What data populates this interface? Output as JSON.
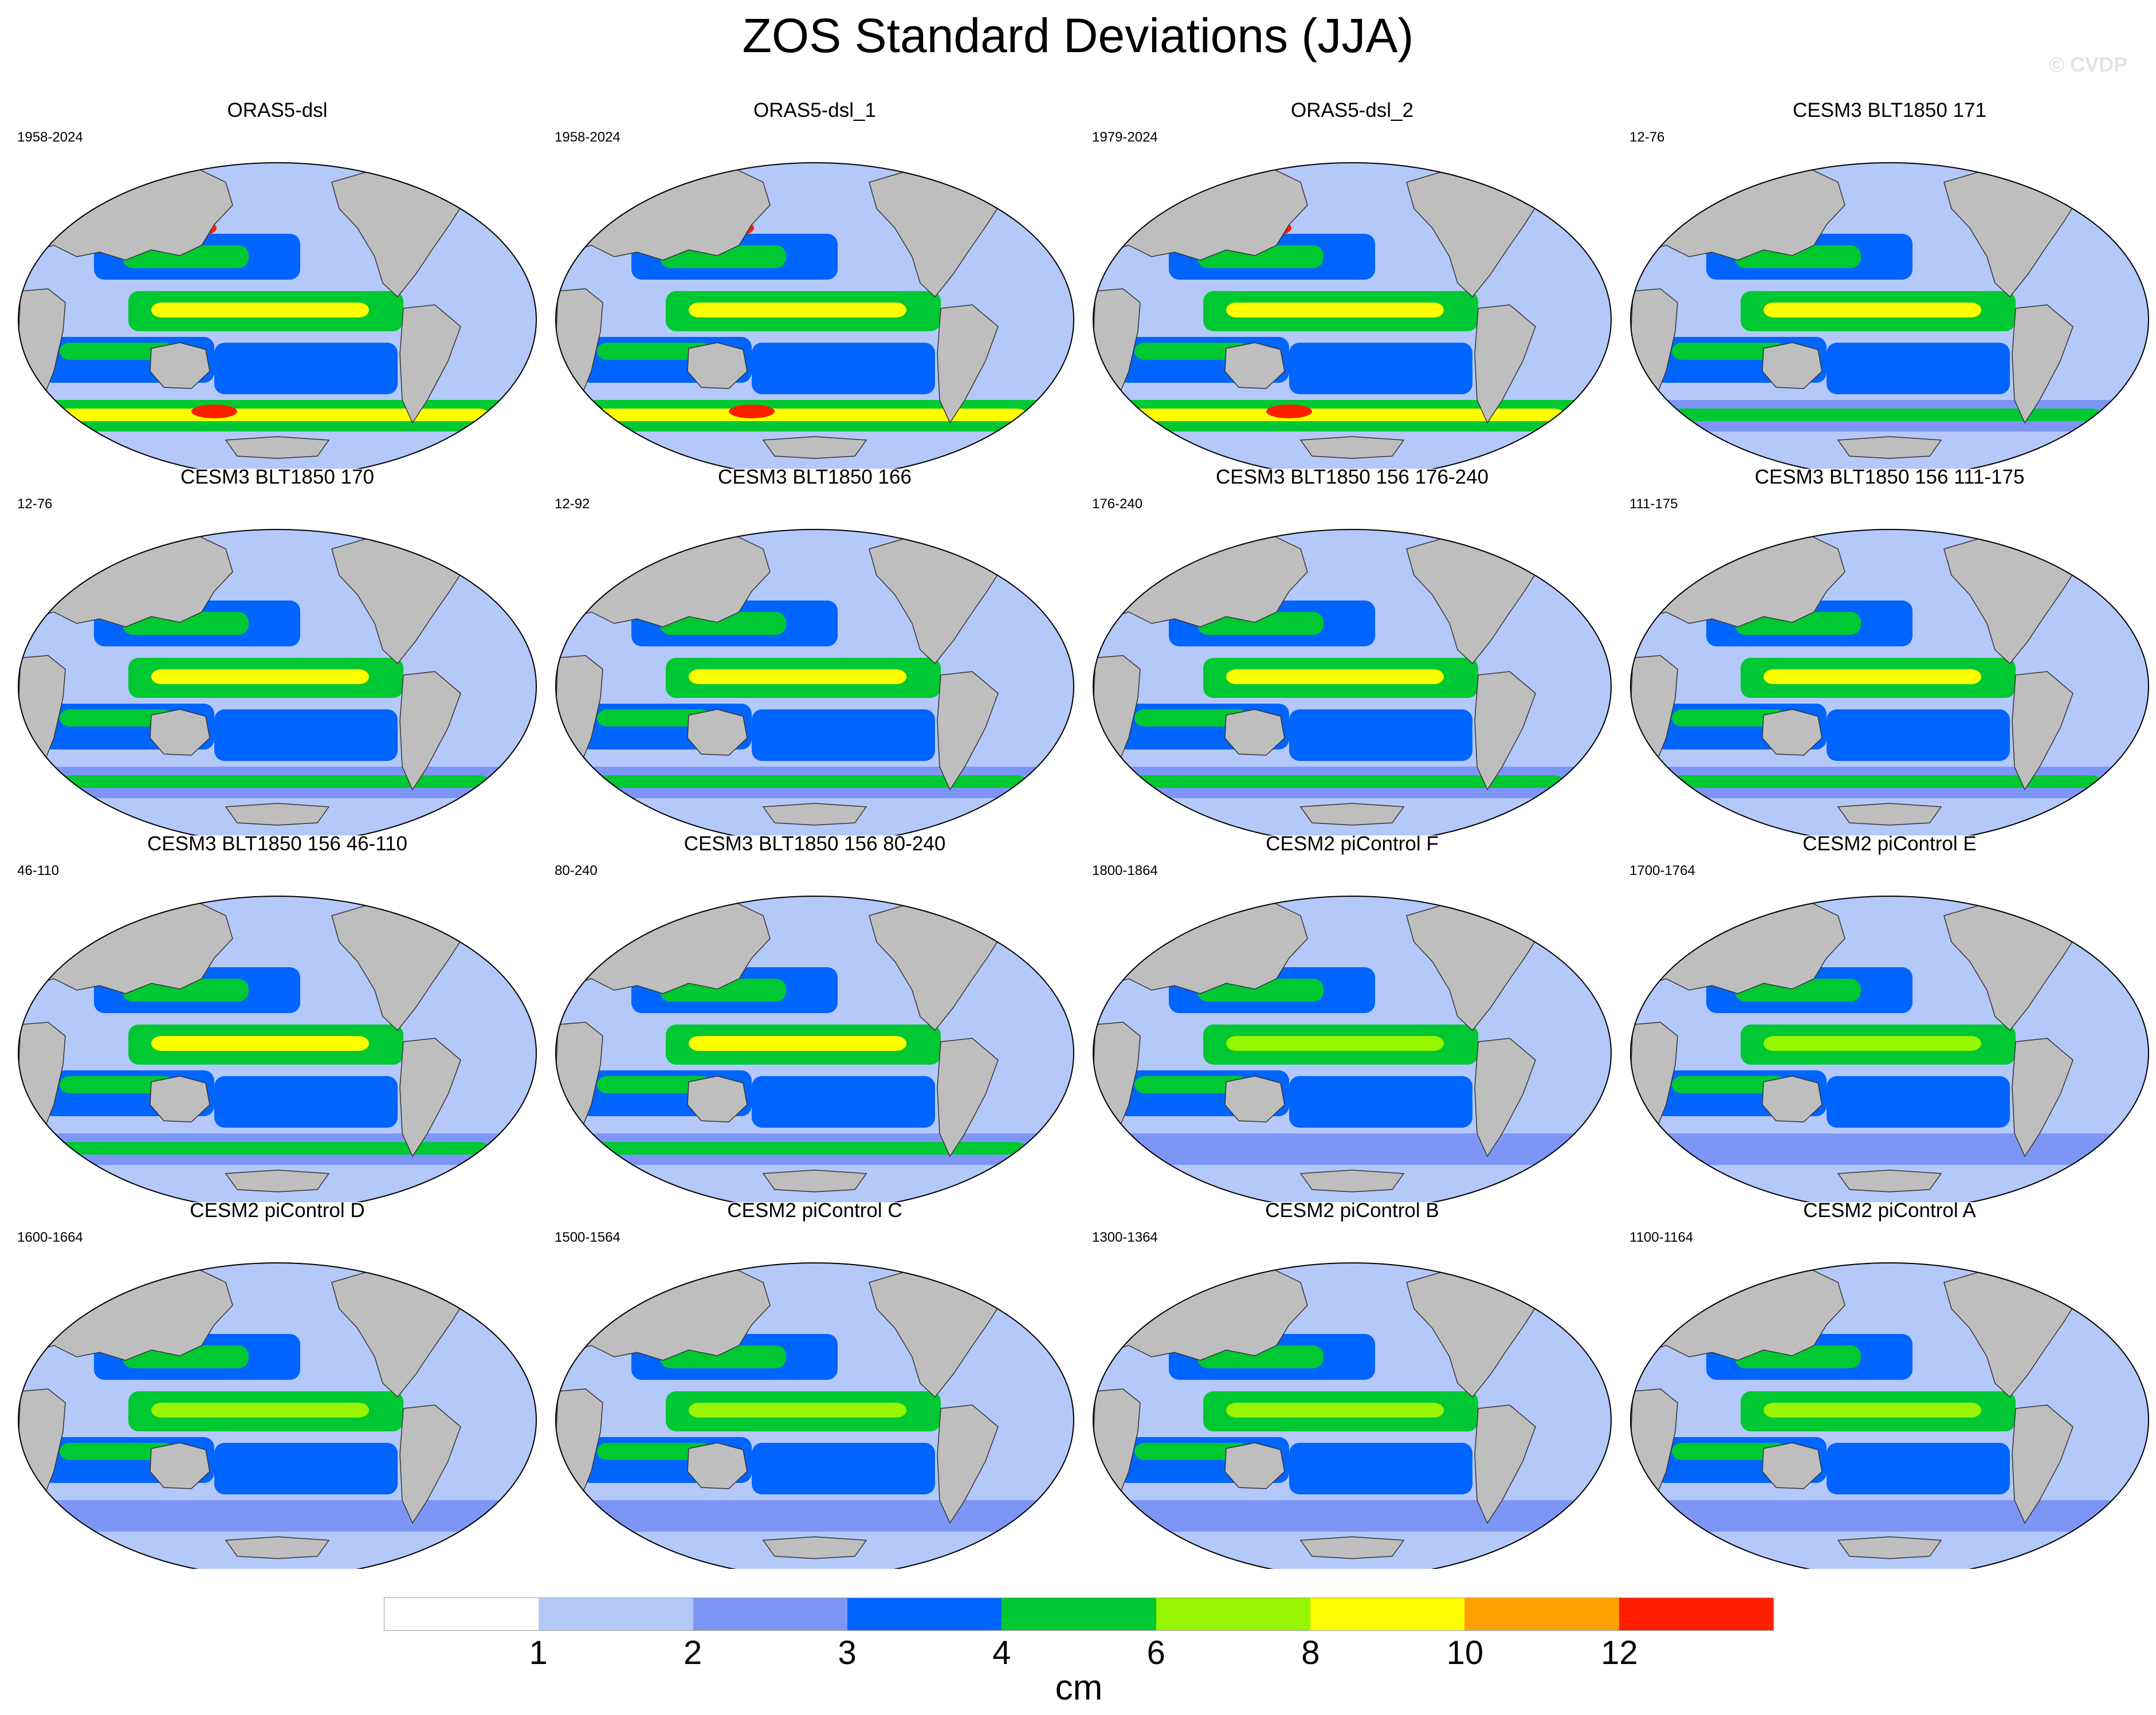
{
  "title": "ZOS Standard Deviations (JJA)",
  "watermark": "© CVDP",
  "panels": [
    {
      "name": "ORAS5-dsl",
      "years": "1958-2024",
      "intensity": 1.0
    },
    {
      "name": "ORAS5-dsl_1",
      "years": "1958-2024",
      "intensity": 1.0
    },
    {
      "name": "ORAS5-dsl_2",
      "years": "1979-2024",
      "intensity": 1.0
    },
    {
      "name": "CESM3 BLT1850 171",
      "years": "12-76",
      "intensity": 0.75
    },
    {
      "name": "CESM3 BLT1850 170",
      "years": "12-76",
      "intensity": 0.75
    },
    {
      "name": "CESM3 BLT1850 166",
      "years": "12-92",
      "intensity": 0.75
    },
    {
      "name": "CESM3 BLT1850 156 176-240",
      "years": "176-240",
      "intensity": 0.75
    },
    {
      "name": "CESM3 BLT1850 156 111-175",
      "years": "111-175",
      "intensity": 0.75
    },
    {
      "name": "CESM3 BLT1850 156 46-110",
      "years": "46-110",
      "intensity": 0.75
    },
    {
      "name": "CESM3 BLT1850 156 80-240",
      "years": "80-240",
      "intensity": 0.75
    },
    {
      "name": "CESM2 piControl F",
      "years": "1800-1864",
      "intensity": 0.5
    },
    {
      "name": "CESM2 piControl E",
      "years": "1700-1764",
      "intensity": 0.5
    },
    {
      "name": "CESM2 piControl D",
      "years": "1600-1664",
      "intensity": 0.5
    },
    {
      "name": "CESM2 piControl C",
      "years": "1500-1564",
      "intensity": 0.5
    },
    {
      "name": "CESM2 piControl B",
      "years": "1300-1364",
      "intensity": 0.5
    },
    {
      "name": "CESM2 piControl A",
      "years": "1100-1164",
      "intensity": 0.5
    }
  ],
  "legend": {
    "unit": "cm",
    "ticks": [
      "1",
      "2",
      "3",
      "4",
      "6",
      "8",
      "10",
      "12"
    ],
    "colors": [
      "#ffffff",
      "#b4c8fa",
      "#7d96f5",
      "#0064ff",
      "#00c832",
      "#96f500",
      "#ffff00",
      "#ffa000",
      "#ff1e00"
    ]
  },
  "colors": {
    "land": "#bebebe",
    "ocean_base": "#b4c8fa"
  }
}
